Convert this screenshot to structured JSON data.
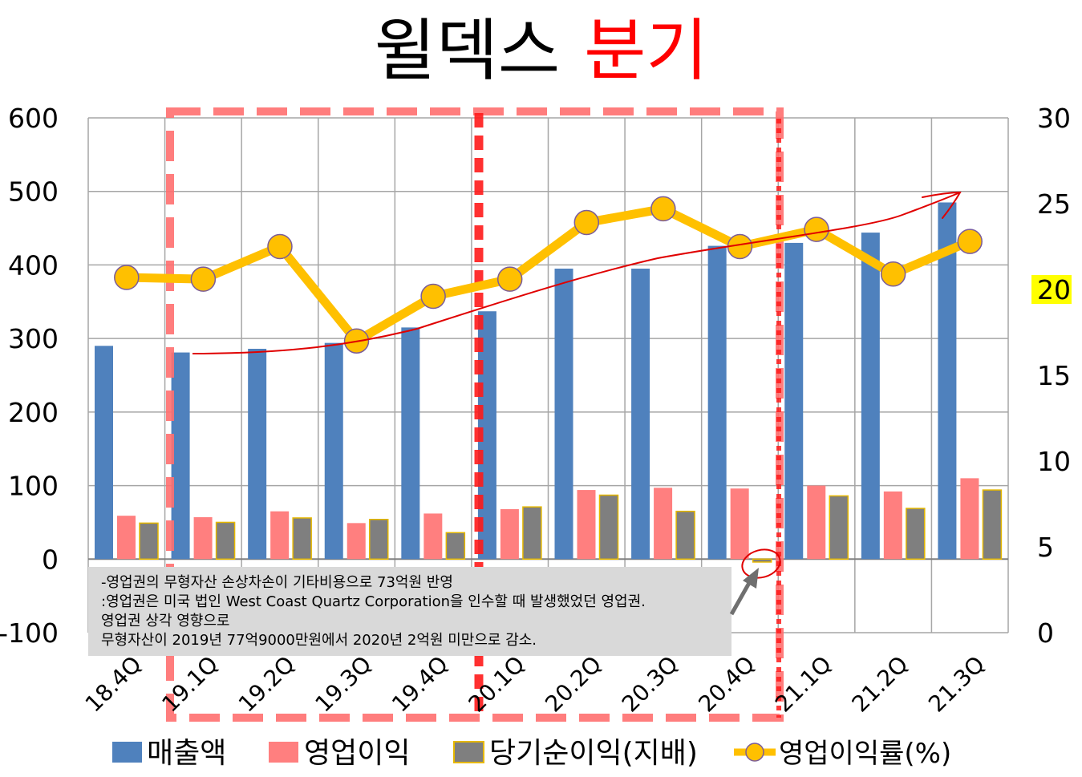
{
  "chart_data": {
    "type": "bar",
    "title_main": "윌덱스",
    "title_highlight": "분기",
    "categories": [
      "18.4Q",
      "19.1Q",
      "19.2Q",
      "19.3Q",
      "19.4Q",
      "20.1Q",
      "20.2Q",
      "20.3Q",
      "20.4Q",
      "21.1Q",
      "21.2Q",
      "21.3Q"
    ],
    "series": [
      {
        "name": "매출액",
        "axis": "left",
        "color": "#4f81bd",
        "values": [
          290,
          281,
          286,
          294,
          315,
          337,
          395,
          395,
          426,
          430,
          444,
          485
        ]
      },
      {
        "name": "영업이익",
        "axis": "left",
        "color": "#ff7f7f",
        "values": [
          59,
          57,
          65,
          49,
          62,
          68,
          94,
          97,
          96,
          100,
          92,
          110
        ]
      },
      {
        "name": "당기순이익(지배)",
        "axis": "left",
        "color": "#7f7f7f",
        "edge_color": "#e6b800",
        "values": [
          49,
          50,
          56,
          54,
          36,
          71,
          87,
          65,
          -4,
          86,
          69,
          94
        ]
      },
      {
        "name": "영업이익률(%)",
        "axis": "right",
        "type": "line",
        "color": "#ffc000",
        "values": [
          20.7,
          20.6,
          22.5,
          17.0,
          19.6,
          20.6,
          23.9,
          24.7,
          22.5,
          23.5,
          20.9,
          22.8
        ]
      }
    ],
    "y_left": {
      "min": -100,
      "max": 600,
      "ticks": [
        600,
        500,
        400,
        300,
        200,
        100,
        0,
        -100
      ]
    },
    "y_right": {
      "min": 0,
      "max": 30,
      "ticks": [
        30,
        25,
        20,
        15,
        10,
        5,
        0
      ],
      "highlighted_tick": 20
    },
    "grid": true,
    "legend_position": "bottom",
    "annotation_lines": [
      "-영업권의 무형자산 손상차손이 기타비용으로 73억원 반영",
      ":영업권은 미국 법인 West Coast Quartz Corporation을 인수할 때 발생했었던 영업권.",
      "영업권 상각 영향으로",
      "무형자산이 2019년 77억9000만원에서 2020년 2억원 미만으로 감소."
    ],
    "colors": {
      "dashed_box": "#ff6f6f",
      "dashed_divider": "#ff1a1a",
      "trend_arrow": "#e00000",
      "grid": "#a6a6a6",
      "annotation_bg": "#d9d9d9",
      "tick_highlight": "#ffff00"
    }
  }
}
